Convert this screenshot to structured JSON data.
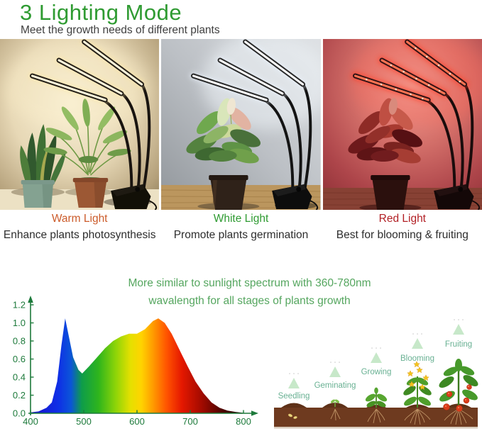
{
  "header": {
    "title": "3 Lighting Mode",
    "title_color": "#2f9b32",
    "subtitle": "Meet the growth needs of different plants"
  },
  "modes": [
    {
      "label": "Warm Light",
      "label_color": "#cc5c2b",
      "description": "Enhance plants photosynthesis",
      "photo": "warm-light-photo"
    },
    {
      "label": "White Light",
      "label_color": "#2f9b32",
      "description": "Promote plants germination",
      "photo": "white-light-photo"
    },
    {
      "label": "Red Light",
      "label_color": "#b22025",
      "description": "Best for blooming & fruiting",
      "photo": "red-light-photo"
    }
  ],
  "spectrum_note": {
    "line1": "More similar to sunlight spectrum with 360-780nm",
    "line2": "wavalength for all stages of plants growth",
    "color": "#55a65f"
  },
  "chart_data": {
    "type": "area",
    "title": "",
    "xlabel": "",
    "ylabel": "",
    "x_ticks": [
      400,
      500,
      600,
      700,
      800
    ],
    "x_tick_labels": [
      "400",
      "500",
      "600",
      "700",
      "800"
    ],
    "y_ticks": [
      0.0,
      0.2,
      0.4,
      0.6,
      0.8,
      1.0,
      1.2
    ],
    "y_tick_labels": [
      "0.0",
      "0.2",
      "0.4",
      "0.6",
      "0.8",
      "1.0",
      "1.2"
    ],
    "xlim": [
      400,
      815
    ],
    "ylim": [
      0,
      1.32
    ],
    "grid": false,
    "axis_color": "#1d7a3b",
    "series": [
      {
        "name": "sunlight-like spectrum",
        "x": [
          400,
          415,
          430,
          440,
          450,
          458,
          465,
          472,
          480,
          490,
          497,
          510,
          525,
          540,
          555,
          570,
          585,
          600,
          615,
          630,
          640,
          652,
          665,
          680,
          695,
          710,
          725,
          740,
          755,
          770,
          785,
          800
        ],
        "y": [
          0.01,
          0.02,
          0.06,
          0.12,
          0.35,
          0.75,
          1.05,
          0.85,
          0.62,
          0.48,
          0.44,
          0.52,
          0.62,
          0.72,
          0.8,
          0.85,
          0.88,
          0.88,
          0.93,
          1.02,
          1.05,
          1.0,
          0.88,
          0.7,
          0.52,
          0.35,
          0.22,
          0.12,
          0.06,
          0.03,
          0.015,
          0.005
        ]
      }
    ],
    "fill_gradient_stops": [
      {
        "offset": 0,
        "color": "#1b10c9"
      },
      {
        "offset": 0.13,
        "color": "#0f2fe6"
      },
      {
        "offset": 0.19,
        "color": "#0b55d8"
      },
      {
        "offset": 0.24,
        "color": "#0e9c4a"
      },
      {
        "offset": 0.32,
        "color": "#2fb51c"
      },
      {
        "offset": 0.4,
        "color": "#8ed408"
      },
      {
        "offset": 0.47,
        "color": "#e6e000"
      },
      {
        "offset": 0.52,
        "color": "#ffd400"
      },
      {
        "offset": 0.58,
        "color": "#ff9600"
      },
      {
        "offset": 0.64,
        "color": "#ff5300"
      },
      {
        "offset": 0.71,
        "color": "#e51800"
      },
      {
        "offset": 0.8,
        "color": "#a50b00"
      },
      {
        "offset": 0.9,
        "color": "#4d0300"
      },
      {
        "offset": 1,
        "color": "#140000"
      }
    ]
  },
  "growth_stages": {
    "label_color": "#69b193",
    "labels": [
      "Seedling",
      "Geminating",
      "Growing",
      "Blooming",
      "Fruiting"
    ]
  }
}
